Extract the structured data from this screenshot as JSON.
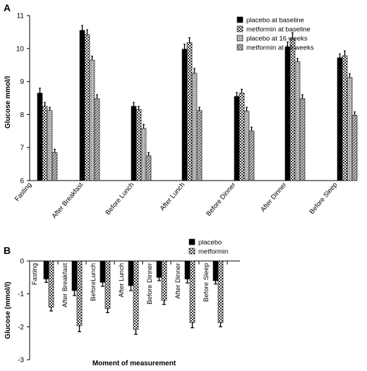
{
  "chart_data": [
    {
      "panel_label": "A",
      "type": "bar",
      "ylabel": "Glucose mmol/l",
      "ylim": [
        6,
        11
      ],
      "yticks": [
        6,
        7,
        8,
        9,
        10,
        11
      ],
      "categories": [
        "Fasting",
        "After Breakfast",
        "Before Lunch",
        "After Lunch",
        "Before Dinner",
        "After Dinner",
        "Before Sleep"
      ],
      "legend_position": "top-right",
      "series": [
        {
          "name": "placebo at baseline",
          "pattern": "solid-black",
          "values": [
            8.65,
            10.55,
            8.25,
            9.98,
            8.55,
            10.05,
            9.72
          ],
          "errors": [
            0.15,
            0.15,
            0.12,
            0.15,
            0.12,
            0.15,
            0.12
          ]
        },
        {
          "name": "metformin at baseline",
          "pattern": "checker",
          "values": [
            8.25,
            10.42,
            8.15,
            10.18,
            8.65,
            10.3,
            9.78
          ],
          "errors": [
            0.12,
            0.15,
            0.1,
            0.15,
            0.12,
            0.18,
            0.15
          ]
        },
        {
          "name": "placebo at 16 weeks",
          "pattern": "dotted-gray",
          "values": [
            8.12,
            9.65,
            7.58,
            9.25,
            8.1,
            9.6,
            9.12
          ],
          "errors": [
            0.1,
            0.12,
            0.12,
            0.15,
            0.12,
            0.1,
            0.12
          ]
        },
        {
          "name": "metformin at 16 weeks",
          "pattern": "hatched-gray",
          "values": [
            6.85,
            8.48,
            6.75,
            8.12,
            7.5,
            8.48,
            7.98
          ],
          "errors": [
            0.1,
            0.12,
            0.1,
            0.1,
            0.12,
            0.12,
            0.1
          ]
        }
      ]
    },
    {
      "panel_label": "B",
      "type": "bar",
      "ylabel": "Glucose (mmol/l)",
      "xlabel": "Moment of measurement",
      "ylim": [
        -3,
        0
      ],
      "yticks": [
        0,
        -1,
        -2,
        -3
      ],
      "categories": [
        "Fasting",
        "After Breakfast",
        "BeforeLunch",
        "After Lunch",
        "Before Dinner",
        "After Dinner",
        "Before Sleep"
      ],
      "legend_position": "top-right",
      "series": [
        {
          "name": "placebo",
          "pattern": "solid-black",
          "values": [
            -0.55,
            -0.9,
            -0.65,
            -0.75,
            -0.5,
            -0.55,
            -0.6
          ],
          "errors": [
            0.1,
            0.15,
            0.12,
            0.15,
            0.1,
            0.12,
            0.1
          ]
        },
        {
          "name": "metformin",
          "pattern": "checker",
          "values": [
            -1.4,
            -1.97,
            -1.45,
            -2.08,
            -1.2,
            -1.88,
            -1.88
          ],
          "errors": [
            0.12,
            0.18,
            0.12,
            0.15,
            0.12,
            0.15,
            0.12
          ]
        }
      ]
    }
  ]
}
